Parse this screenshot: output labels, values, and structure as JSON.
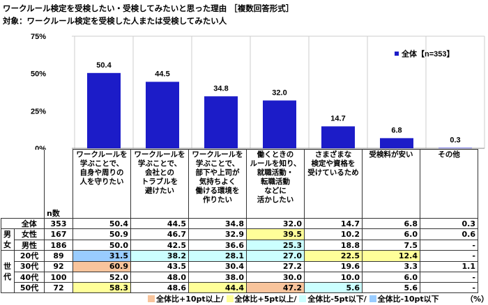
{
  "title": "ワークルール検定を受検したい・受検してみたいと思った理由 ［複数回答形式］",
  "subtitle": "対象：ワークルール検定を受検した人または受検してみたい人",
  "colors": {
    "bar": "#1c1cc8",
    "plus10": "#f8c49c",
    "plus5": "#ffff99",
    "minus5": "#ccffff",
    "minus10": "#99ccff"
  },
  "chart_data": {
    "type": "bar",
    "categories": [
      "ワークルールを\n学ぶことで、\n自身や周りの\n人を守りたい",
      "ワークルールを\n学ぶことで、\n会社との\nトラブルを\n避けたい",
      "ワークルールを\n学ぶことで、\n部下や上司が\n気持ちよく\n働ける環境を\n作りたい",
      "働くときの\nルールを知り、\n就職活動・\n転職活動\nなどに\n活かしたい",
      "さまざまな\n検定や資格を\n受けているため",
      "受検料が安い",
      "その他"
    ],
    "series": [
      {
        "name": "全体【n=353】",
        "values": [
          50.4,
          44.5,
          34.8,
          32.0,
          14.7,
          6.8,
          0.3
        ]
      }
    ],
    "yticks": [
      "0%",
      "25%",
      "50%",
      "75%"
    ],
    "ylim": [
      0,
      75
    ],
    "grid": "vertical separators",
    "legend": "top-right",
    "data_labels": [
      "50.4",
      "44.5",
      "34.8",
      "32.0",
      "14.7",
      "6.8",
      "0.3"
    ]
  },
  "table": {
    "n_header": "n数",
    "unit": "（%）",
    "rows": [
      {
        "group": "",
        "label": "全体",
        "n": "353",
        "values": [
          "50.4",
          "44.5",
          "34.8",
          "32.0",
          "14.7",
          "6.8",
          "0.3"
        ],
        "hl": [
          "",
          "",
          "",
          "",
          "",
          "",
          ""
        ]
      },
      {
        "group": "男",
        "label": "女性",
        "n": "167",
        "values": [
          "50.9",
          "46.7",
          "32.9",
          "39.5",
          "10.2",
          "6.0",
          "0.6"
        ],
        "hl": [
          "",
          "",
          "",
          "plus5",
          "",
          "",
          ""
        ]
      },
      {
        "group": "女",
        "label": "男性",
        "n": "186",
        "values": [
          "50.0",
          "42.5",
          "36.6",
          "25.3",
          "18.8",
          "7.5",
          "-"
        ],
        "hl": [
          "",
          "",
          "",
          "minus5",
          "",
          "",
          ""
        ]
      },
      {
        "group": "",
        "label": "20代",
        "n": "89",
        "values": [
          "31.5",
          "38.2",
          "28.1",
          "27.0",
          "22.5",
          "12.4",
          "-"
        ],
        "hl": [
          "minus10",
          "minus5",
          "minus5",
          "minus5",
          "plus5",
          "plus5",
          ""
        ]
      },
      {
        "group": "世",
        "label": "30代",
        "n": "92",
        "values": [
          "60.9",
          "43.5",
          "30.4",
          "27.2",
          "19.6",
          "3.3",
          "1.1"
        ],
        "hl": [
          "plus10",
          "",
          "",
          "",
          "",
          "",
          ""
        ]
      },
      {
        "group": "代",
        "label": "40代",
        "n": "100",
        "values": [
          "52.0",
          "48.0",
          "38.0",
          "30.0",
          "10.0",
          "6.0",
          "-"
        ],
        "hl": [
          "",
          "",
          "",
          "",
          "",
          "",
          ""
        ]
      },
      {
        "group": "",
        "label": "50代",
        "n": "72",
        "values": [
          "58.3",
          "48.6",
          "44.4",
          "47.2",
          "5.6",
          "5.6",
          "-"
        ],
        "hl": [
          "plus5",
          "",
          "plus5",
          "plus10",
          "minus5",
          "",
          ""
        ]
      }
    ]
  },
  "legend": {
    "plus10": "全体比+10pt以上/",
    "plus5": "全体比+5pt以上/",
    "minus5": "全体比-5pt以下/",
    "minus10": "全体比-10pt以下"
  }
}
